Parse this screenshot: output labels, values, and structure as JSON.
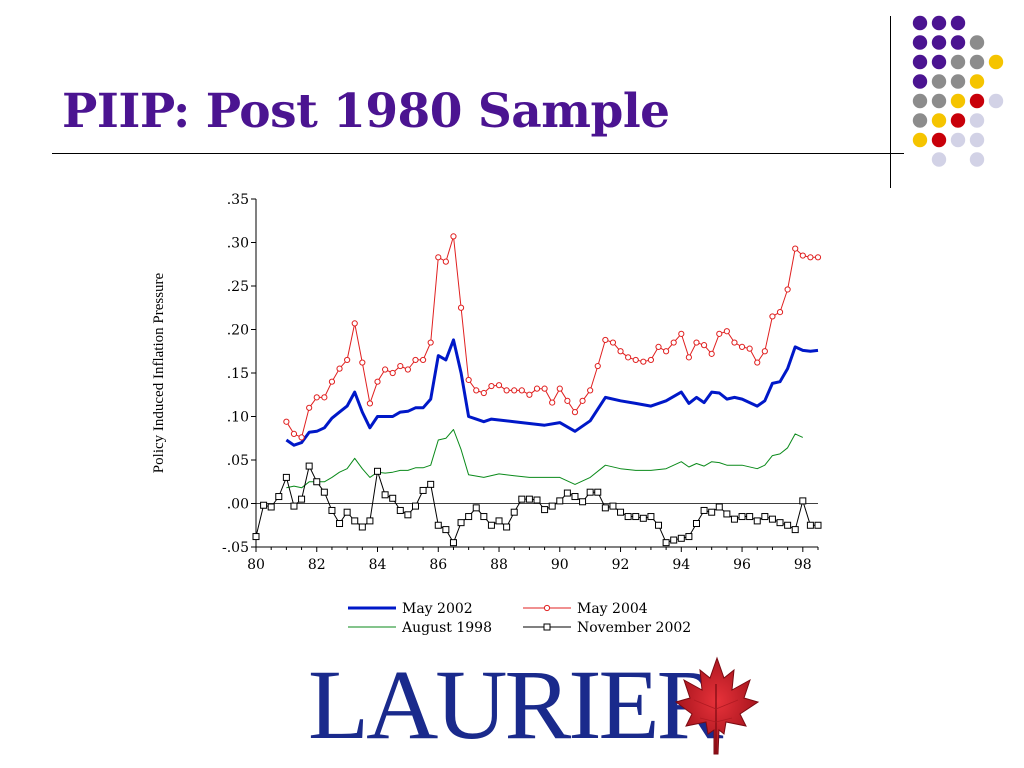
{
  "slide": {
    "title": "PIIP: Post 1980 Sample",
    "logo_text": "LAURIER",
    "logo_color": "#1a2a8c",
    "title_color": "#4b1491"
  },
  "decor": {
    "dot_grid": [
      [
        "purple",
        "purple",
        "purple",
        null,
        null
      ],
      [
        "purple",
        "purple",
        "purple",
        "gray",
        null
      ],
      [
        "purple",
        "purple",
        "gray",
        "gray",
        "gold"
      ],
      [
        "purple",
        "gray",
        "gray",
        "gold",
        null
      ],
      [
        "gray",
        "gray",
        "gold",
        "red",
        "lavender"
      ],
      [
        "gray",
        "gold",
        "red",
        "lavender",
        null
      ],
      [
        "gold",
        "red",
        "lavender",
        "lavender",
        null
      ],
      [
        null,
        "lavender",
        null,
        "lavender",
        null
      ]
    ],
    "palette": {
      "purple": "#4b1491",
      "gray": "#8c8c8c",
      "gold": "#f5c400",
      "red": "#c8000a",
      "lavender": "#d2d2e6"
    },
    "leaf_icon": "maple-leaf-icon"
  },
  "chart_data": {
    "type": "line",
    "ylabel": "Policy Induced Inflation Pressure",
    "xlim": [
      1980,
      1998.5
    ],
    "ylim": [
      -0.05,
      0.35
    ],
    "yticks": [
      -0.05,
      0,
      0.05,
      0.1,
      0.15,
      0.2,
      0.25,
      0.3,
      0.35
    ],
    "ytick_labels": [
      "-.05",
      ".00",
      ".05",
      ".10",
      ".15",
      ".20",
      ".25",
      ".30",
      ".35"
    ],
    "xticks": [
      1980,
      1982,
      1984,
      1986,
      1988,
      1990,
      1992,
      1994,
      1996,
      1998
    ],
    "xtick_labels": [
      "80",
      "82",
      "84",
      "86",
      "88",
      "90",
      "92",
      "94",
      "96",
      "98"
    ],
    "zero_line": true,
    "legend_position": "bottom",
    "series": [
      {
        "name": "May 2002",
        "color": "#0018c8",
        "marker": "none",
        "width": 3,
        "x": [
          1981.0,
          1981.25,
          1981.5,
          1981.75,
          1982.0,
          1982.25,
          1982.5,
          1982.75,
          1983.0,
          1983.25,
          1983.5,
          1983.75,
          1984.0,
          1984.25,
          1984.5,
          1984.75,
          1985.0,
          1985.25,
          1985.5,
          1985.75,
          1986.0,
          1986.25,
          1986.5,
          1986.75,
          1987.0,
          1987.25,
          1987.5,
          1987.75,
          1988.0,
          1988.5,
          1989.0,
          1989.5,
          1990.0,
          1990.5,
          1991.0,
          1991.5,
          1992.0,
          1992.5,
          1993.0,
          1993.5,
          1994.0,
          1994.25,
          1994.5,
          1994.75,
          1995.0,
          1995.25,
          1995.5,
          1995.75,
          1996.0,
          1996.5,
          1996.75,
          1997.0,
          1997.25,
          1997.5,
          1997.75,
          1998.0,
          1998.25,
          1998.5
        ],
        "y": [
          0.073,
          0.067,
          0.07,
          0.082,
          0.083,
          0.087,
          0.098,
          0.105,
          0.112,
          0.128,
          0.105,
          0.087,
          0.1,
          0.1,
          0.1,
          0.105,
          0.106,
          0.11,
          0.11,
          0.12,
          0.17,
          0.165,
          0.188,
          0.15,
          0.1,
          0.097,
          0.094,
          0.097,
          0.096,
          0.094,
          0.092,
          0.09,
          0.093,
          0.083,
          0.095,
          0.122,
          0.118,
          0.115,
          0.112,
          0.118,
          0.128,
          0.115,
          0.122,
          0.116,
          0.128,
          0.127,
          0.12,
          0.122,
          0.12,
          0.112,
          0.118,
          0.138,
          0.14,
          0.155,
          0.18,
          0.176,
          0.175,
          0.176
        ]
      },
      {
        "name": "May 2004",
        "color": "#e02020",
        "marker": "circle",
        "width": 1,
        "x": [
          1981.0,
          1981.25,
          1981.5,
          1981.75,
          1982.0,
          1982.25,
          1982.5,
          1982.75,
          1983.0,
          1983.25,
          1983.5,
          1983.75,
          1984.0,
          1984.25,
          1984.5,
          1984.75,
          1985.0,
          1985.25,
          1985.5,
          1985.75,
          1986.0,
          1986.25,
          1986.5,
          1986.75,
          1987.0,
          1987.25,
          1987.5,
          1987.75,
          1988.0,
          1988.25,
          1988.5,
          1988.75,
          1989.0,
          1989.25,
          1989.5,
          1989.75,
          1990.0,
          1990.25,
          1990.5,
          1990.75,
          1991.0,
          1991.25,
          1991.5,
          1991.75,
          1992.0,
          1992.25,
          1992.5,
          1992.75,
          1993.0,
          1993.25,
          1993.5,
          1993.75,
          1994.0,
          1994.25,
          1994.5,
          1994.75,
          1995.0,
          1995.25,
          1995.5,
          1995.75,
          1996.0,
          1996.25,
          1996.5,
          1996.75,
          1997.0,
          1997.25,
          1997.5,
          1997.75,
          1998.0,
          1998.25,
          1998.5
        ],
        "y": [
          0.094,
          0.08,
          0.076,
          0.11,
          0.122,
          0.122,
          0.14,
          0.155,
          0.165,
          0.207,
          0.162,
          0.115,
          0.14,
          0.154,
          0.15,
          0.158,
          0.154,
          0.165,
          0.165,
          0.185,
          0.283,
          0.278,
          0.307,
          0.225,
          0.142,
          0.13,
          0.127,
          0.135,
          0.136,
          0.13,
          0.13,
          0.13,
          0.125,
          0.132,
          0.132,
          0.116,
          0.132,
          0.118,
          0.105,
          0.118,
          0.13,
          0.158,
          0.188,
          0.185,
          0.175,
          0.168,
          0.165,
          0.163,
          0.165,
          0.18,
          0.175,
          0.185,
          0.195,
          0.168,
          0.185,
          0.182,
          0.172,
          0.195,
          0.198,
          0.185,
          0.18,
          0.178,
          0.162,
          0.175,
          0.215,
          0.22,
          0.246,
          0.293,
          0.285,
          0.283,
          0.283
        ]
      },
      {
        "name": "August 1998",
        "color": "#0a8a1a",
        "marker": "none",
        "width": 1,
        "x": [
          1981.0,
          1981.25,
          1981.5,
          1981.75,
          1982.0,
          1982.25,
          1982.5,
          1982.75,
          1983.0,
          1983.25,
          1983.5,
          1983.75,
          1984.0,
          1984.25,
          1984.5,
          1984.75,
          1985.0,
          1985.25,
          1985.5,
          1985.75,
          1986.0,
          1986.25,
          1986.5,
          1986.75,
          1987.0,
          1987.5,
          1988.0,
          1988.5,
          1989.0,
          1989.5,
          1990.0,
          1990.5,
          1991.0,
          1991.5,
          1992.0,
          1992.5,
          1993.0,
          1993.5,
          1994.0,
          1994.25,
          1994.5,
          1994.75,
          1995.0,
          1995.25,
          1995.5,
          1995.75,
          1996.0,
          1996.5,
          1996.75,
          1997.0,
          1997.25,
          1997.5,
          1997.75,
          1998.0
        ],
        "y": [
          0.018,
          0.02,
          0.018,
          0.025,
          0.025,
          0.025,
          0.03,
          0.036,
          0.04,
          0.052,
          0.04,
          0.03,
          0.036,
          0.035,
          0.036,
          0.038,
          0.038,
          0.041,
          0.041,
          0.044,
          0.073,
          0.075,
          0.085,
          0.062,
          0.033,
          0.03,
          0.034,
          0.032,
          0.03,
          0.03,
          0.03,
          0.022,
          0.03,
          0.044,
          0.04,
          0.038,
          0.038,
          0.04,
          0.048,
          0.042,
          0.046,
          0.043,
          0.048,
          0.047,
          0.044,
          0.044,
          0.044,
          0.04,
          0.044,
          0.055,
          0.057,
          0.064,
          0.08,
          0.076
        ]
      },
      {
        "name": "November 2002",
        "color": "#000000",
        "marker": "square",
        "width": 1,
        "x": [
          1980.0,
          1980.25,
          1980.5,
          1980.75,
          1981.0,
          1981.25,
          1981.5,
          1981.75,
          1982.0,
          1982.25,
          1982.5,
          1982.75,
          1983.0,
          1983.25,
          1983.5,
          1983.75,
          1984.0,
          1984.25,
          1984.5,
          1984.75,
          1985.0,
          1985.25,
          1985.5,
          1985.75,
          1986.0,
          1986.25,
          1986.5,
          1986.75,
          1987.0,
          1987.25,
          1987.5,
          1987.75,
          1988.0,
          1988.25,
          1988.5,
          1988.75,
          1989.0,
          1989.25,
          1989.5,
          1989.75,
          1990.0,
          1990.25,
          1990.5,
          1990.75,
          1991.0,
          1991.25,
          1991.5,
          1991.75,
          1992.0,
          1992.25,
          1992.5,
          1992.75,
          1993.0,
          1993.25,
          1993.5,
          1993.75,
          1994.0,
          1994.25,
          1994.5,
          1994.75,
          1995.0,
          1995.25,
          1995.5,
          1995.75,
          1996.0,
          1996.25,
          1996.5,
          1996.75,
          1997.0,
          1997.25,
          1997.5,
          1997.75,
          1998.0,
          1998.25,
          1998.5
        ],
        "y": [
          -0.038,
          -0.002,
          -0.004,
          0.008,
          0.03,
          -0.003,
          0.005,
          0.043,
          0.025,
          0.013,
          -0.008,
          -0.023,
          -0.01,
          -0.02,
          -0.027,
          -0.02,
          0.037,
          0.01,
          0.006,
          -0.008,
          -0.013,
          -0.003,
          0.015,
          0.022,
          -0.025,
          -0.03,
          -0.045,
          -0.022,
          -0.015,
          -0.005,
          -0.015,
          -0.025,
          -0.02,
          -0.027,
          -0.01,
          0.005,
          0.005,
          0.004,
          -0.007,
          -0.003,
          0.003,
          0.012,
          0.008,
          0.002,
          0.013,
          0.013,
          -0.005,
          -0.003,
          -0.01,
          -0.015,
          -0.015,
          -0.017,
          -0.015,
          -0.025,
          -0.045,
          -0.042,
          -0.04,
          -0.038,
          -0.023,
          -0.008,
          -0.01,
          -0.004,
          -0.012,
          -0.018,
          -0.015,
          -0.015,
          -0.02,
          -0.015,
          -0.018,
          -0.022,
          -0.025,
          -0.03,
          0.003,
          -0.025,
          -0.025
        ]
      }
    ]
  }
}
